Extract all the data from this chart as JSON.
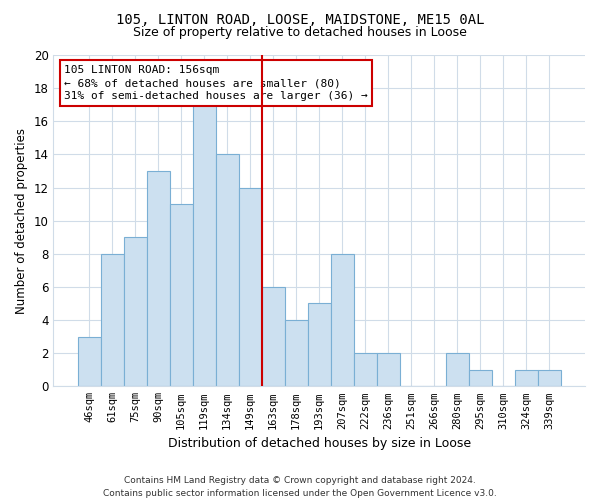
{
  "title_line1": "105, LINTON ROAD, LOOSE, MAIDSTONE, ME15 0AL",
  "title_line2": "Size of property relative to detached houses in Loose",
  "xlabel": "Distribution of detached houses by size in Loose",
  "ylabel": "Number of detached properties",
  "bar_labels": [
    "46sqm",
    "61sqm",
    "75sqm",
    "90sqm",
    "105sqm",
    "119sqm",
    "134sqm",
    "149sqm",
    "163sqm",
    "178sqm",
    "193sqm",
    "207sqm",
    "222sqm",
    "236sqm",
    "251sqm",
    "266sqm",
    "280sqm",
    "295sqm",
    "310sqm",
    "324sqm",
    "339sqm"
  ],
  "bar_heights": [
    3,
    8,
    9,
    13,
    11,
    17,
    14,
    12,
    6,
    4,
    5,
    8,
    2,
    2,
    0,
    0,
    2,
    1,
    0,
    1,
    1
  ],
  "bar_color": "#cce0f0",
  "bar_edge_color": "#7aafd4",
  "vline_color": "#cc0000",
  "annotation_title": "105 LINTON ROAD: 156sqm",
  "annotation_line1": "← 68% of detached houses are smaller (80)",
  "annotation_line2": "31% of semi-detached houses are larger (36) →",
  "annotation_box_color": "#ffffff",
  "annotation_box_edge": "#cc0000",
  "ylim_max": 20,
  "yticks": [
    0,
    2,
    4,
    6,
    8,
    10,
    12,
    14,
    16,
    18,
    20
  ],
  "footer_line1": "Contains HM Land Registry data © Crown copyright and database right 2024.",
  "footer_line2": "Contains public sector information licensed under the Open Government Licence v3.0.",
  "bg_color": "#ffffff",
  "grid_color": "#d0dce8",
  "title_fontsize": 10,
  "subtitle_fontsize": 9
}
